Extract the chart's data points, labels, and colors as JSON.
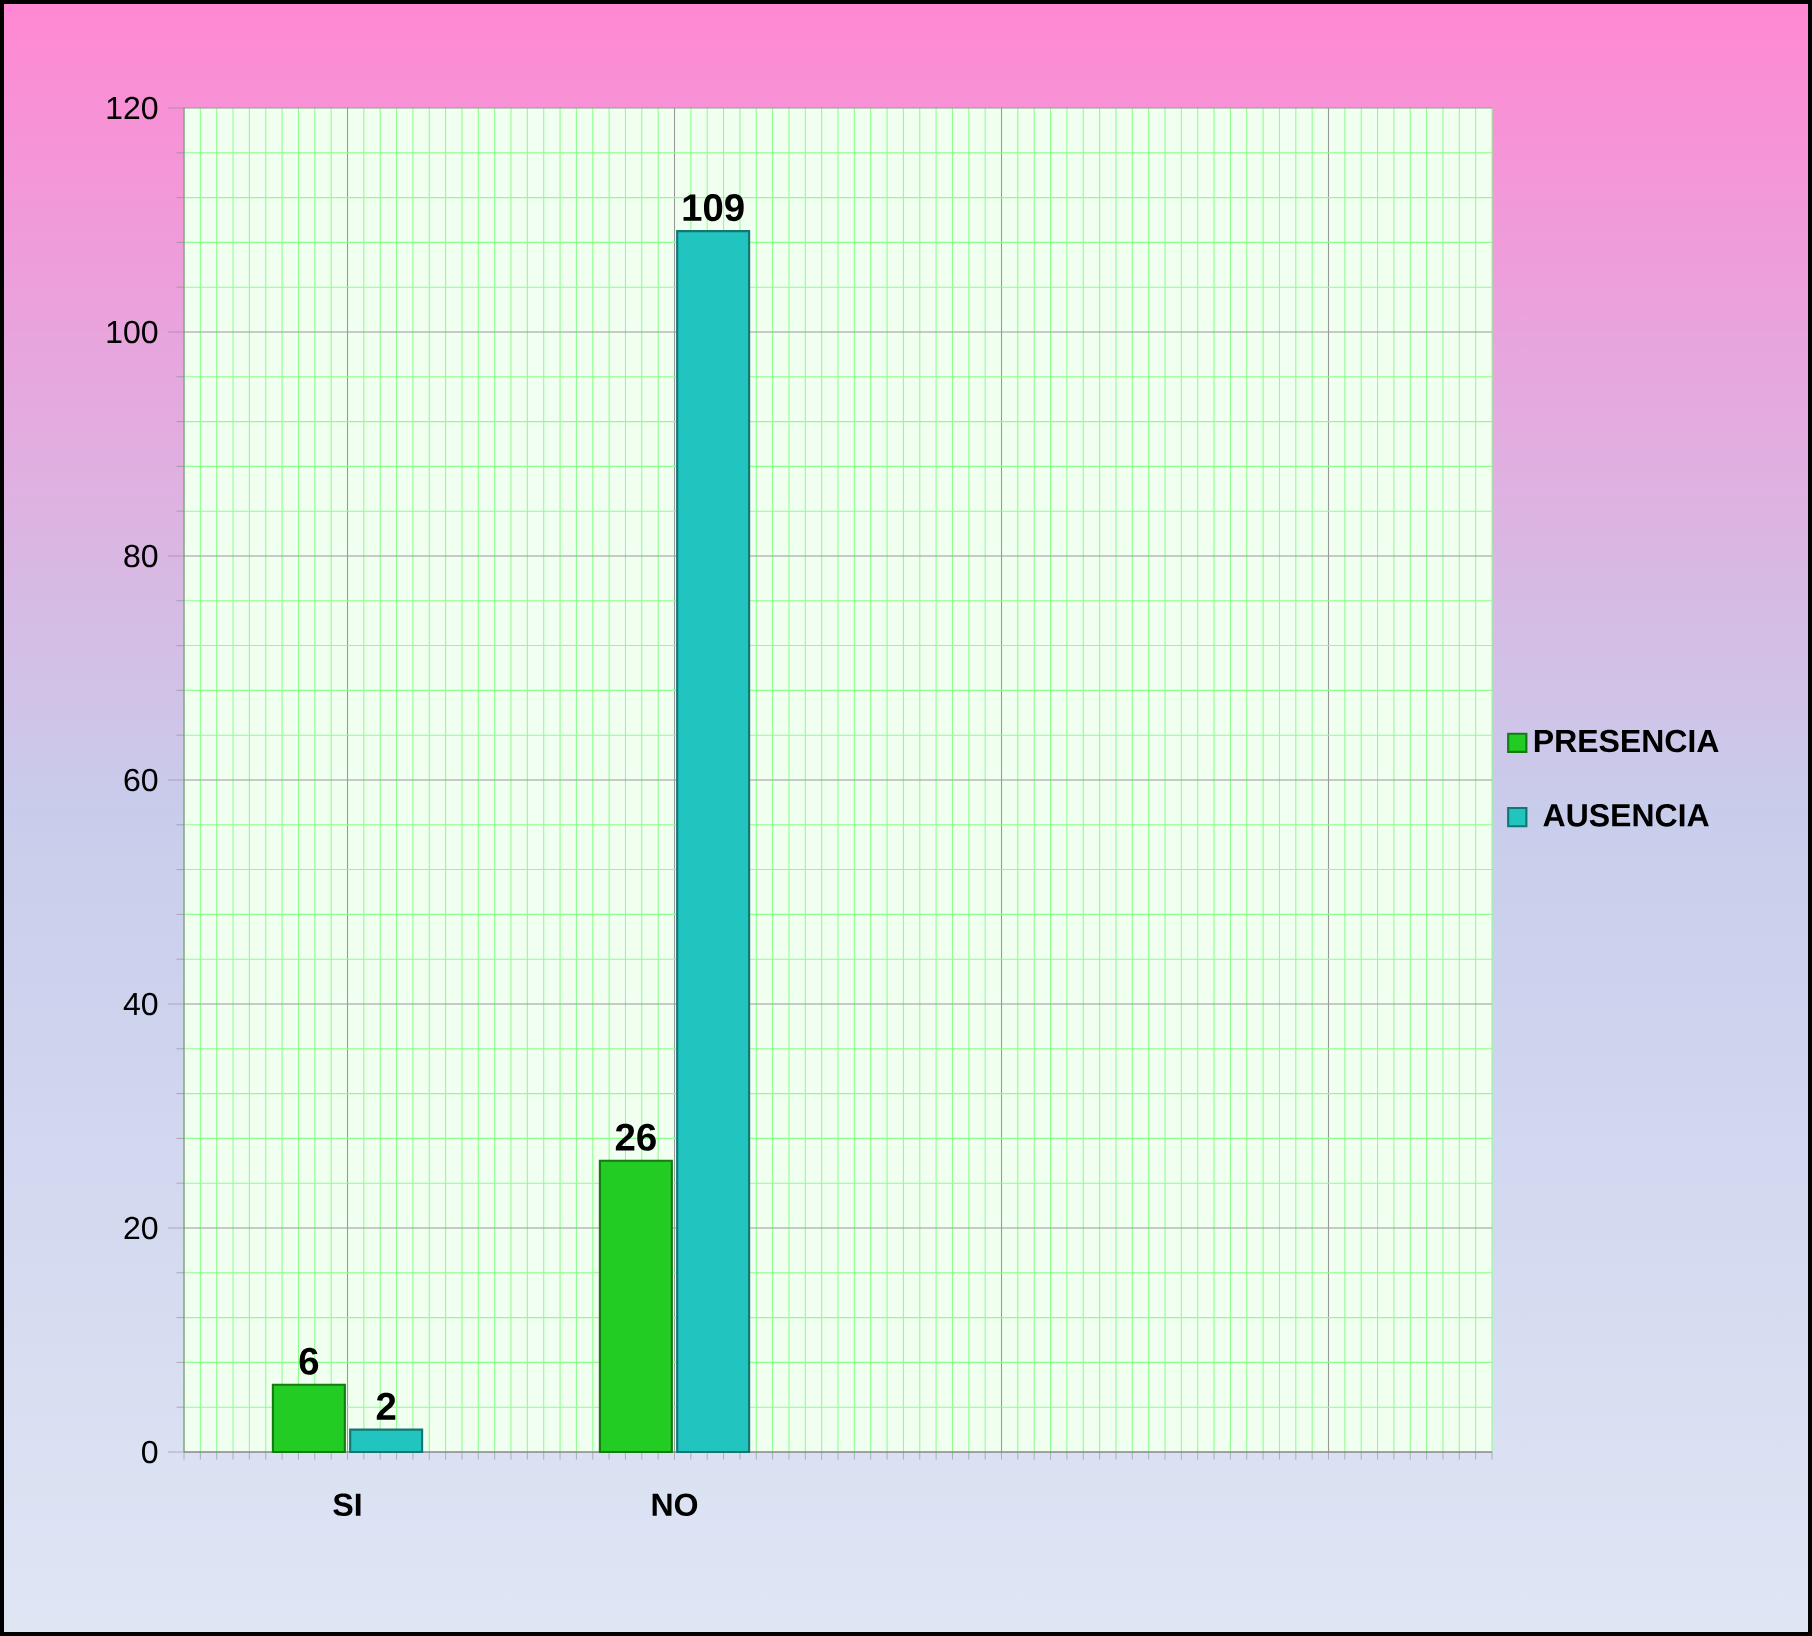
{
  "chart_data": {
    "type": "bar",
    "categories": [
      "SI",
      "NO",
      null,
      null
    ],
    "series": [
      {
        "name": "PRESENCIA",
        "color": "#22cc22",
        "values": [
          6,
          26,
          null,
          null
        ]
      },
      {
        "name": "AUSENCIA",
        "color": "#22c4c0",
        "values": [
          2,
          109,
          null,
          null
        ]
      }
    ],
    "ylim": [
      0,
      120
    ],
    "yticks": [
      0,
      20,
      40,
      60,
      80,
      100,
      120
    ],
    "grid": true,
    "legend": "right",
    "data_labels": true
  }
}
